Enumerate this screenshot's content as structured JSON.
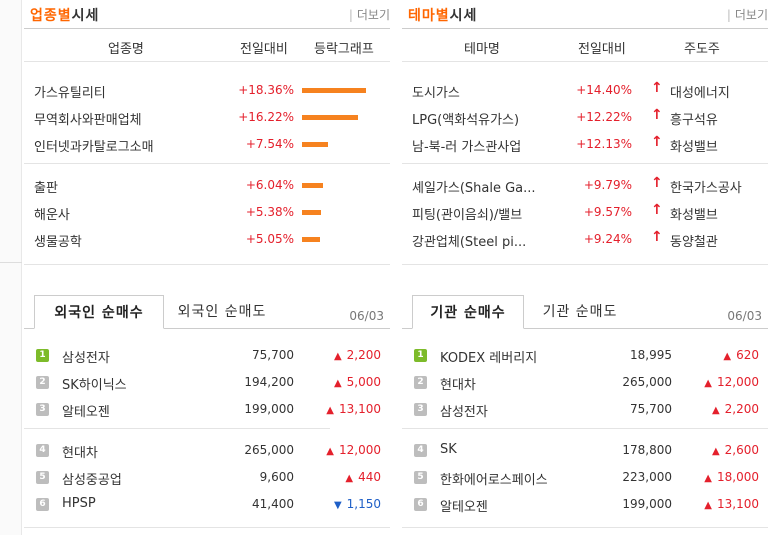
{
  "sector": {
    "title_highlight": "업종별",
    "title_rest": "시세",
    "more": "더보기",
    "headers": [
      "업종명",
      "전일대비",
      "등락그래프"
    ],
    "rows": [
      {
        "name": "가스유틸리티",
        "change": "+18.36%",
        "bar_percent": 100
      },
      {
        "name": "무역회사와판매업체",
        "change": "+16.22%",
        "bar_percent": 88
      },
      {
        "name": "인터넷과카탈로그소매",
        "change": "+7.54%",
        "bar_percent": 41
      },
      {
        "name": "출판",
        "change": "+6.04%",
        "bar_percent": 33
      },
      {
        "name": "해운사",
        "change": "+5.38%",
        "bar_percent": 29
      },
      {
        "name": "생물공학",
        "change": "+5.05%",
        "bar_percent": 28
      }
    ]
  },
  "theme": {
    "title_highlight": "테마별",
    "title_rest": "시세",
    "more": "더보기",
    "headers": [
      "테마명",
      "전일대비",
      "주도주"
    ],
    "rows": [
      {
        "name": "도시가스",
        "change": "+14.40%",
        "leader": "대성에너지"
      },
      {
        "name": "LPG(액화석유가스)",
        "change": "+12.22%",
        "leader": "흥구석유"
      },
      {
        "name": "남-북-러 가스관사업",
        "change": "+12.13%",
        "leader": "화성밸브"
      },
      {
        "name": "셰일가스(Shale Ga...",
        "change": "+9.79%",
        "leader": "한국가스공사"
      },
      {
        "name": "피팅(관이음쇠)/밸브",
        "change": "+9.57%",
        "leader": "화성밸브"
      },
      {
        "name": "강관업체(Steel pi...",
        "change": "+9.24%",
        "leader": "동양철관"
      }
    ]
  },
  "foreign": {
    "tab_active": "외국인 순매수",
    "tab_inactive": "외국인 순매도",
    "date": "06/03",
    "rows": [
      {
        "rank": "1",
        "name": "삼성전자",
        "price": "75,700",
        "dir": "up",
        "change": "2,200"
      },
      {
        "rank": "2",
        "name": "SK하이닉스",
        "price": "194,200",
        "dir": "up",
        "change": "5,000"
      },
      {
        "rank": "3",
        "name": "알테오젠",
        "price": "199,000",
        "dir": "up",
        "change": "13,100"
      },
      {
        "rank": "4",
        "name": "현대차",
        "price": "265,000",
        "dir": "up",
        "change": "12,000"
      },
      {
        "rank": "5",
        "name": "삼성중공업",
        "price": "9,600",
        "dir": "up",
        "change": "440"
      },
      {
        "rank": "6",
        "name": "HPSP",
        "price": "41,400",
        "dir": "down",
        "change": "1,150"
      }
    ]
  },
  "institution": {
    "tab_active": "기관 순매수",
    "tab_inactive": "기관 순매도",
    "date": "06/03",
    "rows": [
      {
        "rank": "1",
        "name": "KODEX 레버리지",
        "price": "18,995",
        "dir": "up",
        "change": "620"
      },
      {
        "rank": "2",
        "name": "현대차",
        "price": "265,000",
        "dir": "up",
        "change": "12,000"
      },
      {
        "rank": "3",
        "name": "삼성전자",
        "price": "75,700",
        "dir": "up",
        "change": "2,200"
      },
      {
        "rank": "4",
        "name": "SK",
        "price": "178,800",
        "dir": "up",
        "change": "2,600"
      },
      {
        "rank": "5",
        "name": "한화에어로스페이스",
        "price": "223,000",
        "dir": "up",
        "change": "18,000"
      },
      {
        "rank": "6",
        "name": "알테오젠",
        "price": "199,000",
        "dir": "up",
        "change": "13,100"
      }
    ]
  },
  "icons": {
    "up_arrow": "up-arrow-icon",
    "up_triangle": "up-triangle-icon",
    "down_triangle": "down-triangle-icon"
  },
  "colors": {
    "accent": "#ff6600",
    "rise": "#e4202c",
    "fall": "#1f5fc7",
    "bar": "#f6821f",
    "rank_first": "#7dbb2a",
    "rank_other": "#bdbdbd"
  }
}
